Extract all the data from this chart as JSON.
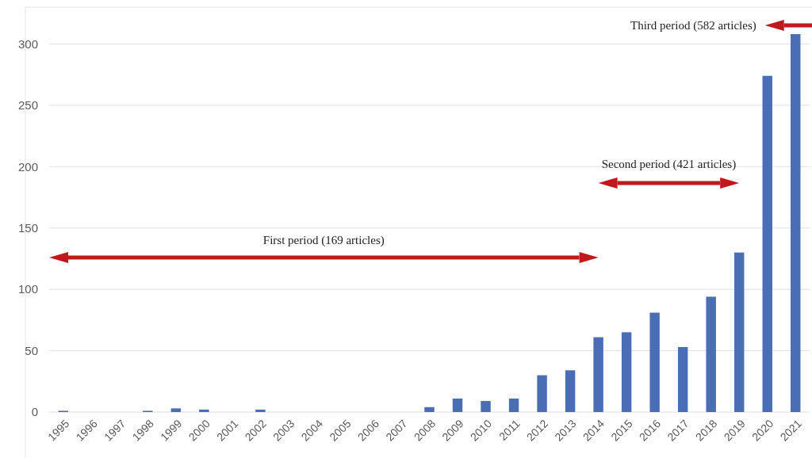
{
  "chart_data": {
    "type": "bar",
    "categories": [
      "1995",
      "1996",
      "1997",
      "1998",
      "1999",
      "2000",
      "2001",
      "2002",
      "2003",
      "2004",
      "2005",
      "2006",
      "2007",
      "2008",
      "2009",
      "2010",
      "2011",
      "2012",
      "2013",
      "2014",
      "2015",
      "2016",
      "2017",
      "2018",
      "2019",
      "2020",
      "2021"
    ],
    "values": [
      1,
      0,
      0,
      1,
      3,
      2,
      0,
      2,
      0,
      0,
      0,
      0,
      0,
      4,
      11,
      9,
      11,
      30,
      34,
      61,
      65,
      81,
      53,
      94,
      130,
      274,
      308
    ],
    "color": "#4a6eb5",
    "ylim": [
      0,
      330
    ],
    "yticks": [
      0,
      50,
      100,
      150,
      200,
      250,
      300
    ],
    "grid": "y",
    "annotations": [
      "First period (169 articles)",
      "Second period (421 articles)",
      "Third period (582 articles)"
    ]
  }
}
